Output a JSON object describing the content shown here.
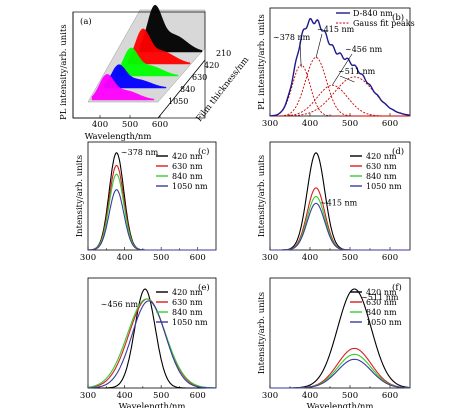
{
  "chart_data": [
    {
      "panel": "(a)",
      "type": "area",
      "xlabel": "Wavelength/nm",
      "ylabel": "PL intensity/arb. units",
      "zlabel": "Film thickness/nm",
      "x_ticks": [
        "400",
        "500",
        "600"
      ],
      "series": [
        {
          "name": "210",
          "color": "#000000",
          "peak": 1.0
        },
        {
          "name": "420",
          "color": "#ff0000",
          "peak": 0.75
        },
        {
          "name": "630",
          "color": "#00ff00",
          "peak": 0.6
        },
        {
          "name": "840",
          "color": "#0000ff",
          "peak": 0.5
        },
        {
          "name": "1050",
          "color": "#ff00ff",
          "peak": 0.55
        }
      ]
    },
    {
      "panel": "(b)",
      "type": "line",
      "xlabel": "",
      "ylabel": "PL intensity/arb. units",
      "x_ticks": [
        "300",
        "400",
        "500",
        "600"
      ],
      "xlim": [
        300,
        650
      ],
      "legend": [
        "D-840 nm",
        "Gauss fit peaks"
      ],
      "annotations": [
        "~378 nm",
        "~415 nm",
        "~456 nm",
        "~511 nm"
      ],
      "peaks": [
        {
          "center": 378,
          "amp": 0.55,
          "sigma": 22
        },
        {
          "center": 415,
          "amp": 0.63,
          "sigma": 26
        },
        {
          "center": 456,
          "amp": 0.33,
          "sigma": 38
        },
        {
          "center": 511,
          "amp": 0.42,
          "sigma": 50
        }
      ]
    },
    {
      "panel": "(c)",
      "type": "line",
      "xlabel": "",
      "ylabel": "Intensity/arb. units",
      "x_ticks": [
        "300",
        "400",
        "500",
        "600"
      ],
      "xlim": [
        300,
        650
      ],
      "annotation": "~378 nm",
      "center": 378,
      "sigma": 20,
      "series": [
        {
          "name": "420 nm",
          "color": "#000000",
          "value": 1.0
        },
        {
          "name": "630 nm",
          "color": "#dd1c1c",
          "value": 0.87
        },
        {
          "name": "840 nm",
          "color": "#33cc33",
          "value": 0.78
        },
        {
          "name": "1050 nm",
          "color": "#3a3aa0",
          "value": 0.62
        }
      ]
    },
    {
      "panel": "(d)",
      "type": "line",
      "xlabel": "",
      "ylabel": "Intensity/arb. units",
      "x_ticks": [
        "300",
        "400",
        "500",
        "600"
      ],
      "xlim": [
        300,
        650
      ],
      "annotation": "~415 nm",
      "center": 415,
      "sigma": 22,
      "series": [
        {
          "name": "420 nm",
          "color": "#000000",
          "value": 1.0
        },
        {
          "name": "630 nm",
          "color": "#dd1c1c",
          "value": 0.64
        },
        {
          "name": "840 nm",
          "color": "#33cc33",
          "value": 0.55
        },
        {
          "name": "1050 nm",
          "color": "#3a3aa0",
          "value": 0.48
        }
      ]
    },
    {
      "panel": "(e)",
      "type": "line",
      "xlabel": "Wavelength/nm",
      "ylabel": "",
      "x_ticks": [
        "300",
        "400",
        "500",
        "600"
      ],
      "xlim": [
        300,
        650
      ],
      "annotation": "~456 nm",
      "series": [
        {
          "name": "420 nm",
          "color": "#000000",
          "value": 1.0,
          "center": 456,
          "sigma": 28
        },
        {
          "name": "630 nm",
          "color": "#dd1c1c",
          "value": 0.9,
          "center": 462,
          "sigma": 50
        },
        {
          "name": "840 nm",
          "color": "#33cc33",
          "value": 0.9,
          "center": 460,
          "sigma": 52
        },
        {
          "name": "1050 nm",
          "color": "#3a3aa0",
          "value": 0.88,
          "center": 466,
          "sigma": 46
        }
      ]
    },
    {
      "panel": "(f)",
      "type": "line",
      "xlabel": "Wavelength/nm",
      "ylabel": "Intensity/arb. units",
      "x_ticks": [
        "300",
        "400",
        "500",
        "600"
      ],
      "xlim": [
        300,
        650
      ],
      "annotation": "~511 nm",
      "center": 511,
      "sigma": 42,
      "series": [
        {
          "name": "420 nm",
          "color": "#000000",
          "value": 1.0
        },
        {
          "name": "630 nm",
          "color": "#dd1c1c",
          "value": 0.4
        },
        {
          "name": "840 nm",
          "color": "#33cc33",
          "value": 0.34
        },
        {
          "name": "1050 nm",
          "color": "#3a3aa0",
          "value": 0.29
        }
      ]
    }
  ]
}
